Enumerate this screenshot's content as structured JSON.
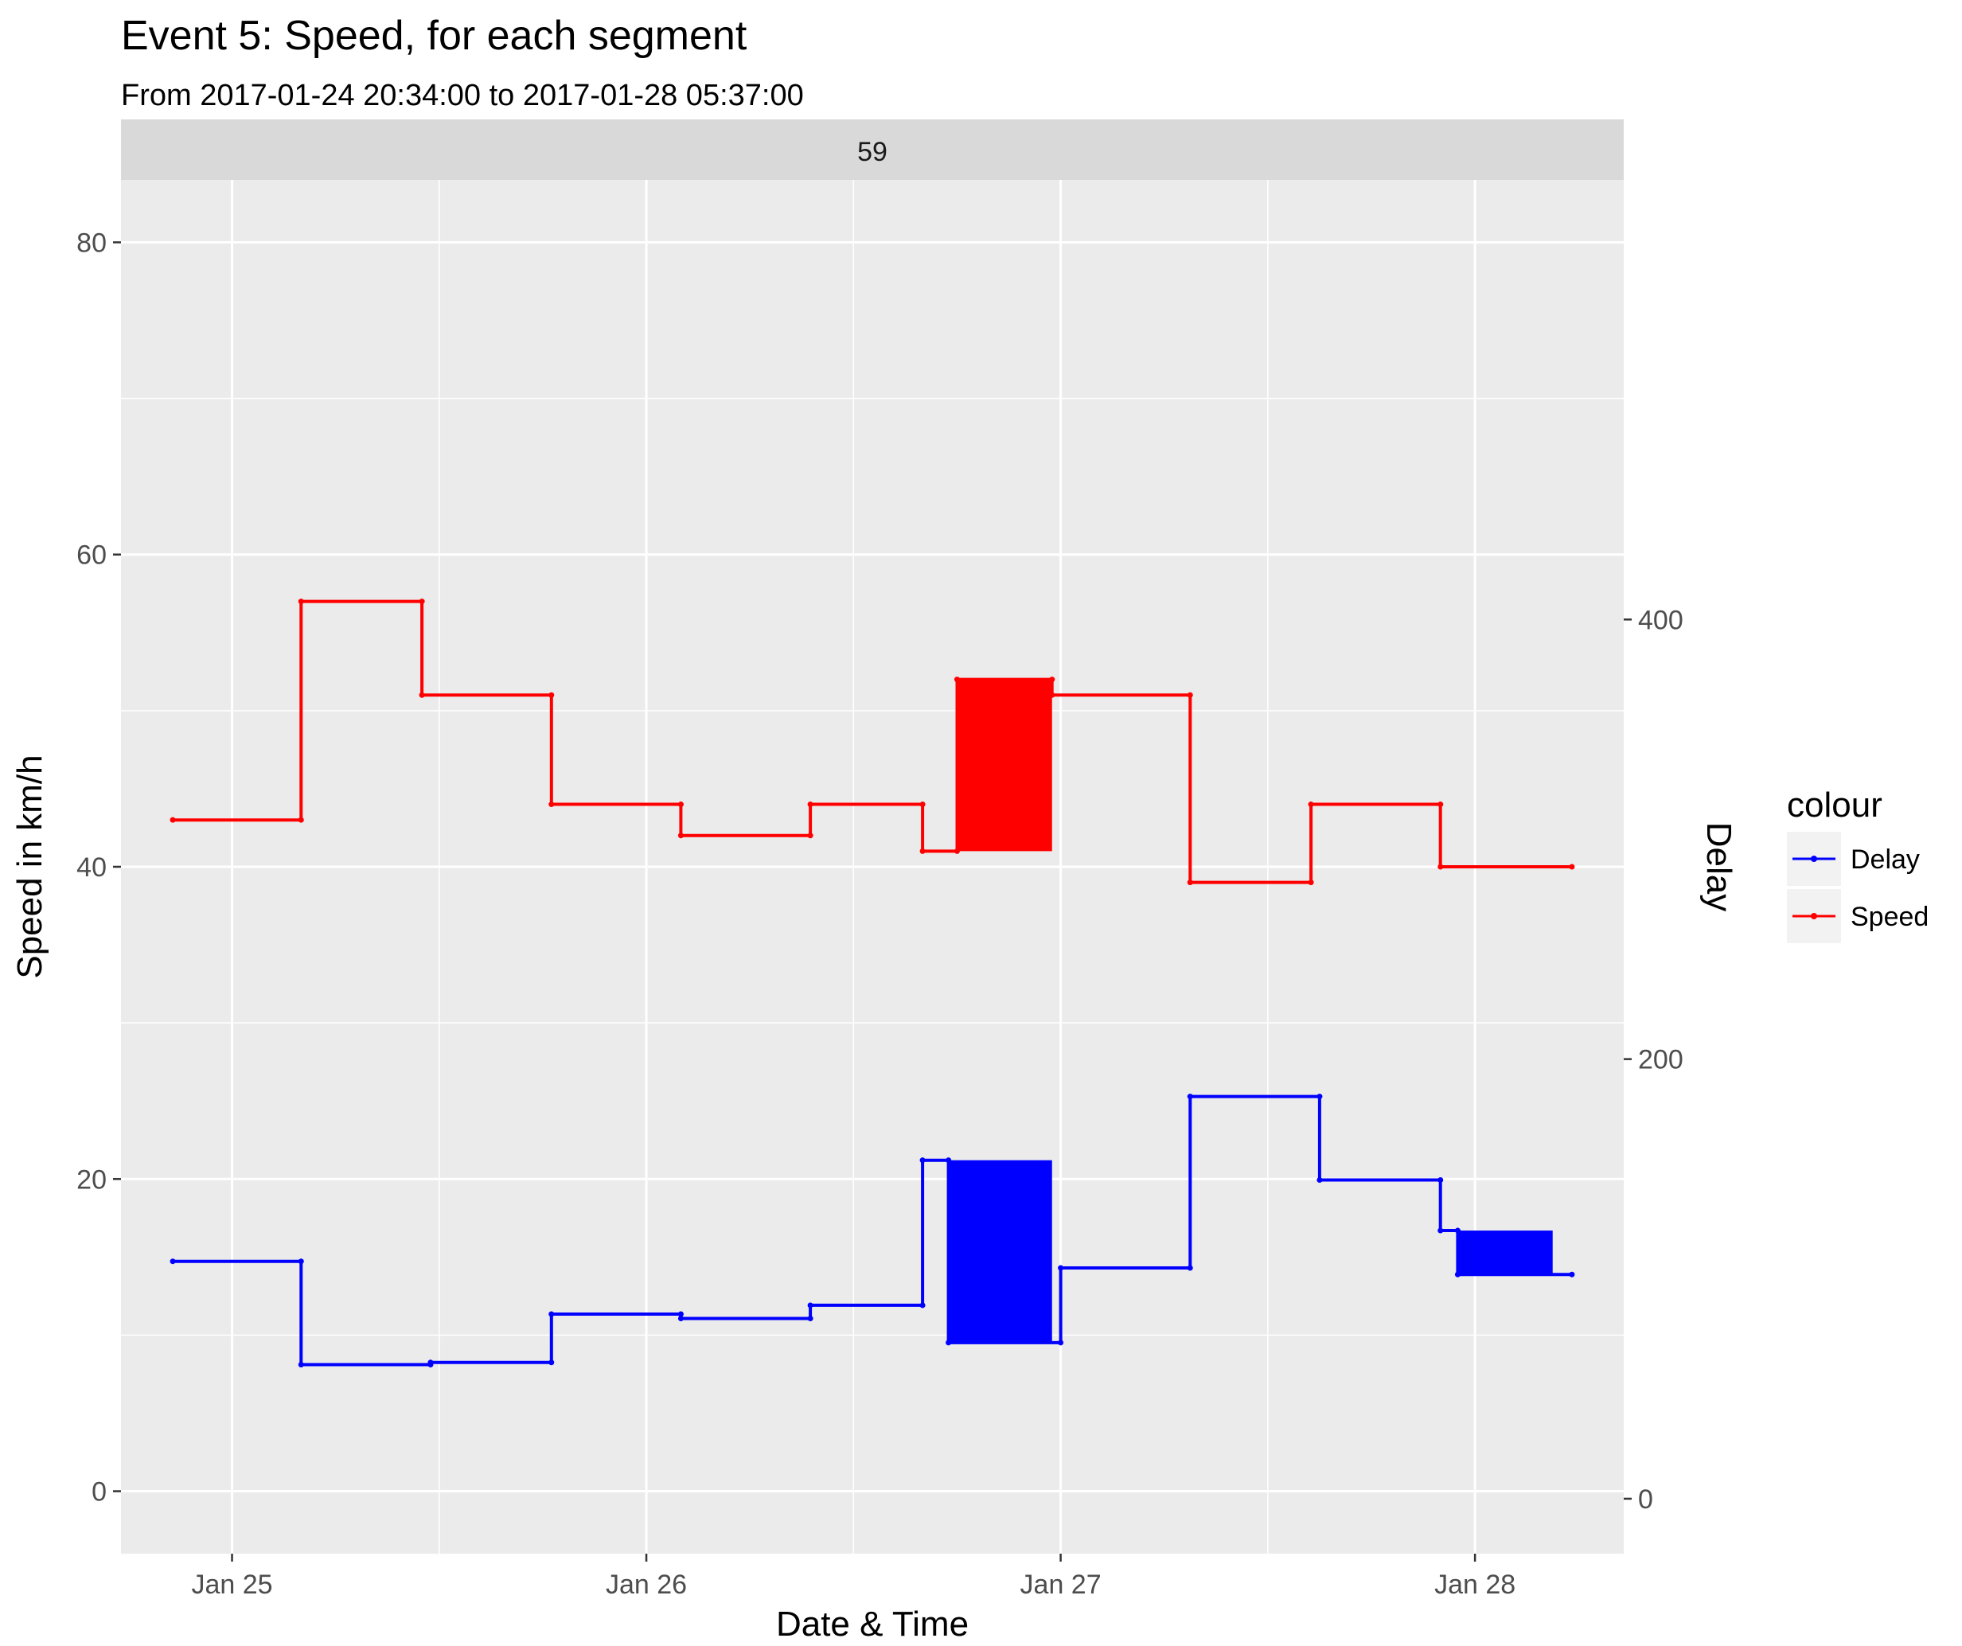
{
  "chart_data": {
    "type": "line",
    "title": "Event 5: Speed, for each segment",
    "subtitle": "From 2017-01-24 20:34:00 to 2017-01-28 05:37:00",
    "facet_label": "59",
    "xlabel": "Date & Time",
    "ylabel": "Speed in km/h",
    "y2label": "Delay",
    "x_range": [
      "2017-01-24 20:34:00",
      "2017-01-28 05:37:00"
    ],
    "x_ticks": [
      {
        "label": "Jan 25",
        "value": "2017-01-25 00:00:00"
      },
      {
        "label": "Jan 26",
        "value": "2017-01-26 00:00:00"
      },
      {
        "label": "Jan 27",
        "value": "2017-01-27 00:00:00"
      },
      {
        "label": "Jan 28",
        "value": "2017-01-28 00:00:00"
      }
    ],
    "ylim": [
      -4,
      84
    ],
    "y_ticks": [
      0,
      20,
      40,
      60,
      80
    ],
    "y2lim": [
      -25,
      600
    ],
    "y2_ticks": [
      0,
      200,
      400
    ],
    "grid": true,
    "legend": {
      "title": "colour",
      "position": "right",
      "entries": [
        "Delay",
        "Speed"
      ]
    },
    "series": [
      {
        "name": "Speed",
        "color": "#ff0000",
        "axis": "left",
        "points": [
          {
            "x": "2017-01-24 20:34:00",
            "y": 43
          },
          {
            "x": "2017-01-25 04:00:00",
            "y": 43
          },
          {
            "x": "2017-01-25 04:00:00",
            "y": 57
          },
          {
            "x": "2017-01-25 11:00:00",
            "y": 57
          },
          {
            "x": "2017-01-25 11:00:00",
            "y": 51
          },
          {
            "x": "2017-01-25 18:30:00",
            "y": 51
          },
          {
            "x": "2017-01-25 18:30:00",
            "y": 44
          },
          {
            "x": "2017-01-26 02:00:00",
            "y": 44
          },
          {
            "x": "2017-01-26 02:00:00",
            "y": 42
          },
          {
            "x": "2017-01-26 09:30:00",
            "y": 42
          },
          {
            "x": "2017-01-26 09:30:00",
            "y": 44
          },
          {
            "x": "2017-01-26 16:00:00",
            "y": 44
          },
          {
            "x": "2017-01-26 16:00:00",
            "y": 41
          },
          {
            "x": "2017-01-26 18:00:00",
            "y": 41
          },
          {
            "x": "2017-01-26 18:00:00",
            "y": 52
          },
          {
            "x": "2017-01-26 23:30:00",
            "y": 52
          },
          {
            "x": "2017-01-26 23:30:00",
            "y": 51
          },
          {
            "x": "2017-01-27 07:30:00",
            "y": 51
          },
          {
            "x": "2017-01-27 07:30:00",
            "y": 39
          },
          {
            "x": "2017-01-27 14:30:00",
            "y": 39
          },
          {
            "x": "2017-01-27 14:30:00",
            "y": 44
          },
          {
            "x": "2017-01-27 22:00:00",
            "y": 44
          },
          {
            "x": "2017-01-27 22:00:00",
            "y": 40
          },
          {
            "x": "2017-01-28 05:37:00",
            "y": 40
          }
        ],
        "dense_bands": [
          {
            "x0": "2017-01-26 18:00:00",
            "x1": "2017-01-26 23:30:00",
            "y0": 41,
            "y1": 52
          }
        ]
      },
      {
        "name": "Delay",
        "color": "#0000ff",
        "axis": "right",
        "points": [
          {
            "x": "2017-01-24 20:34:00",
            "y": 108
          },
          {
            "x": "2017-01-25 04:00:00",
            "y": 108
          },
          {
            "x": "2017-01-25 04:00:00",
            "y": 61
          },
          {
            "x": "2017-01-25 11:30:00",
            "y": 61
          },
          {
            "x": "2017-01-25 11:30:00",
            "y": 62
          },
          {
            "x": "2017-01-25 18:30:00",
            "y": 62
          },
          {
            "x": "2017-01-25 18:30:00",
            "y": 84
          },
          {
            "x": "2017-01-26 02:00:00",
            "y": 84
          },
          {
            "x": "2017-01-26 02:00:00",
            "y": 82
          },
          {
            "x": "2017-01-26 09:30:00",
            "y": 82
          },
          {
            "x": "2017-01-26 09:30:00",
            "y": 88
          },
          {
            "x": "2017-01-26 16:00:00",
            "y": 88
          },
          {
            "x": "2017-01-26 16:00:00",
            "y": 154
          },
          {
            "x": "2017-01-26 17:30:00",
            "y": 154
          },
          {
            "x": "2017-01-26 17:30:00",
            "y": 71
          },
          {
            "x": "2017-01-27 00:00:00",
            "y": 71
          },
          {
            "x": "2017-01-27 00:00:00",
            "y": 105
          },
          {
            "x": "2017-01-27 07:30:00",
            "y": 105
          },
          {
            "x": "2017-01-27 07:30:00",
            "y": 183
          },
          {
            "x": "2017-01-27 15:00:00",
            "y": 183
          },
          {
            "x": "2017-01-27 15:00:00",
            "y": 145
          },
          {
            "x": "2017-01-27 22:00:00",
            "y": 145
          },
          {
            "x": "2017-01-27 22:00:00",
            "y": 122
          },
          {
            "x": "2017-01-27 23:00:00",
            "y": 122
          },
          {
            "x": "2017-01-27 23:00:00",
            "y": 102
          },
          {
            "x": "2017-01-28 05:37:00",
            "y": 102
          }
        ],
        "dense_bands": [
          {
            "x0": "2017-01-26 17:30:00",
            "x1": "2017-01-26 23:30:00",
            "y0": 71,
            "y1": 154
          },
          {
            "x0": "2017-01-27 23:00:00",
            "x1": "2017-01-28 04:30:00",
            "y0": 102,
            "y1": 122
          }
        ]
      }
    ]
  }
}
